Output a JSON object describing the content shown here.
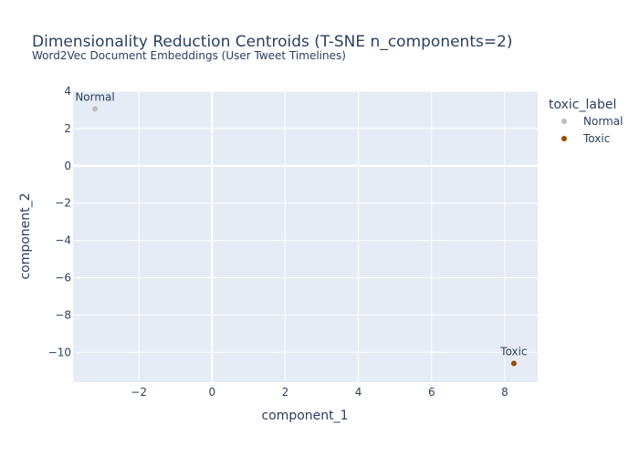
{
  "chart_data": {
    "type": "scatter",
    "title": "Dimensionality Reduction Centroids (T-SNE n_components=2)",
    "subtitle": "Word2Vec Document Embeddings (User Tweet Timelines)",
    "xlabel": "component_1",
    "ylabel": "component_2",
    "xlim": [
      -3.8,
      8.9
    ],
    "ylim": [
      -11.6,
      4.0
    ],
    "xticks": [
      -2,
      0,
      2,
      4,
      6,
      8
    ],
    "yticks": [
      4,
      2,
      0,
      -2,
      -4,
      -6,
      -8,
      -10
    ],
    "xtick_labels": [
      "−2",
      "0",
      "2",
      "4",
      "6",
      "8"
    ],
    "ytick_labels": [
      "4",
      "2",
      "0",
      "−2",
      "−4",
      "−6",
      "−8",
      "−10"
    ],
    "legend_title": "toxic_label",
    "legend_position": "right",
    "series": [
      {
        "name": "Normal",
        "color": "#bdbdbd",
        "x": [
          -3.2
        ],
        "y": [
          3.05
        ],
        "labels": [
          "Normal"
        ]
      },
      {
        "name": "Toxic",
        "color": "#994c00",
        "x": [
          8.25
        ],
        "y": [
          -10.6
        ],
        "labels": [
          "Toxic"
        ]
      }
    ]
  }
}
